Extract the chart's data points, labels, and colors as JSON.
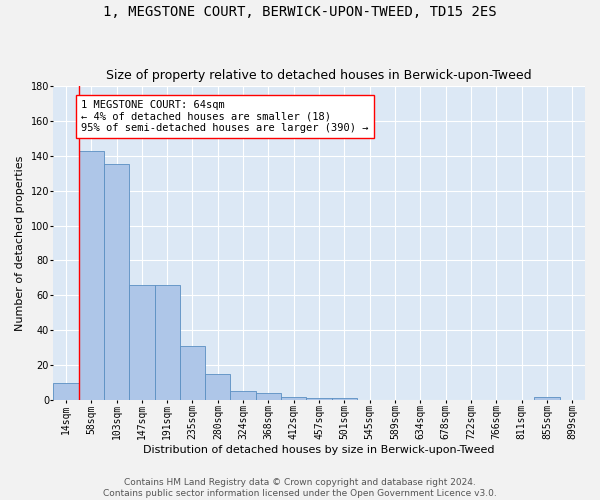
{
  "title": "1, MEGSTONE COURT, BERWICK-UPON-TWEED, TD15 2ES",
  "subtitle": "Size of property relative to detached houses in Berwick-upon-Tweed",
  "xlabel": "Distribution of detached houses by size in Berwick-upon-Tweed",
  "ylabel": "Number of detached properties",
  "footer_line1": "Contains HM Land Registry data © Crown copyright and database right 2024.",
  "footer_line2": "Contains public sector information licensed under the Open Government Licence v3.0.",
  "bar_labels": [
    "14sqm",
    "58sqm",
    "103sqm",
    "147sqm",
    "191sqm",
    "235sqm",
    "280sqm",
    "324sqm",
    "368sqm",
    "412sqm",
    "457sqm",
    "501sqm",
    "545sqm",
    "589sqm",
    "634sqm",
    "678sqm",
    "722sqm",
    "766sqm",
    "811sqm",
    "855sqm",
    "899sqm"
  ],
  "bar_values": [
    10,
    143,
    135,
    66,
    66,
    31,
    15,
    5,
    4,
    2,
    1,
    1,
    0,
    0,
    0,
    0,
    0,
    0,
    0,
    2,
    0
  ],
  "bar_color": "#aec6e8",
  "bar_edge_color": "#5a8fc2",
  "ylim": [
    0,
    180
  ],
  "yticks": [
    0,
    20,
    40,
    60,
    80,
    100,
    120,
    140,
    160,
    180
  ],
  "annotation_line1": "1 MEGSTONE COURT: 64sqm",
  "annotation_line2": "← 4% of detached houses are smaller (18)",
  "annotation_line3": "95% of semi-detached houses are larger (390) →",
  "bg_color": "#dce8f5",
  "grid_color": "#ffffff",
  "title_fontsize": 10,
  "subtitle_fontsize": 9,
  "axis_label_fontsize": 8,
  "tick_fontsize": 7,
  "annotation_fontsize": 7.5,
  "footer_fontsize": 6.5
}
